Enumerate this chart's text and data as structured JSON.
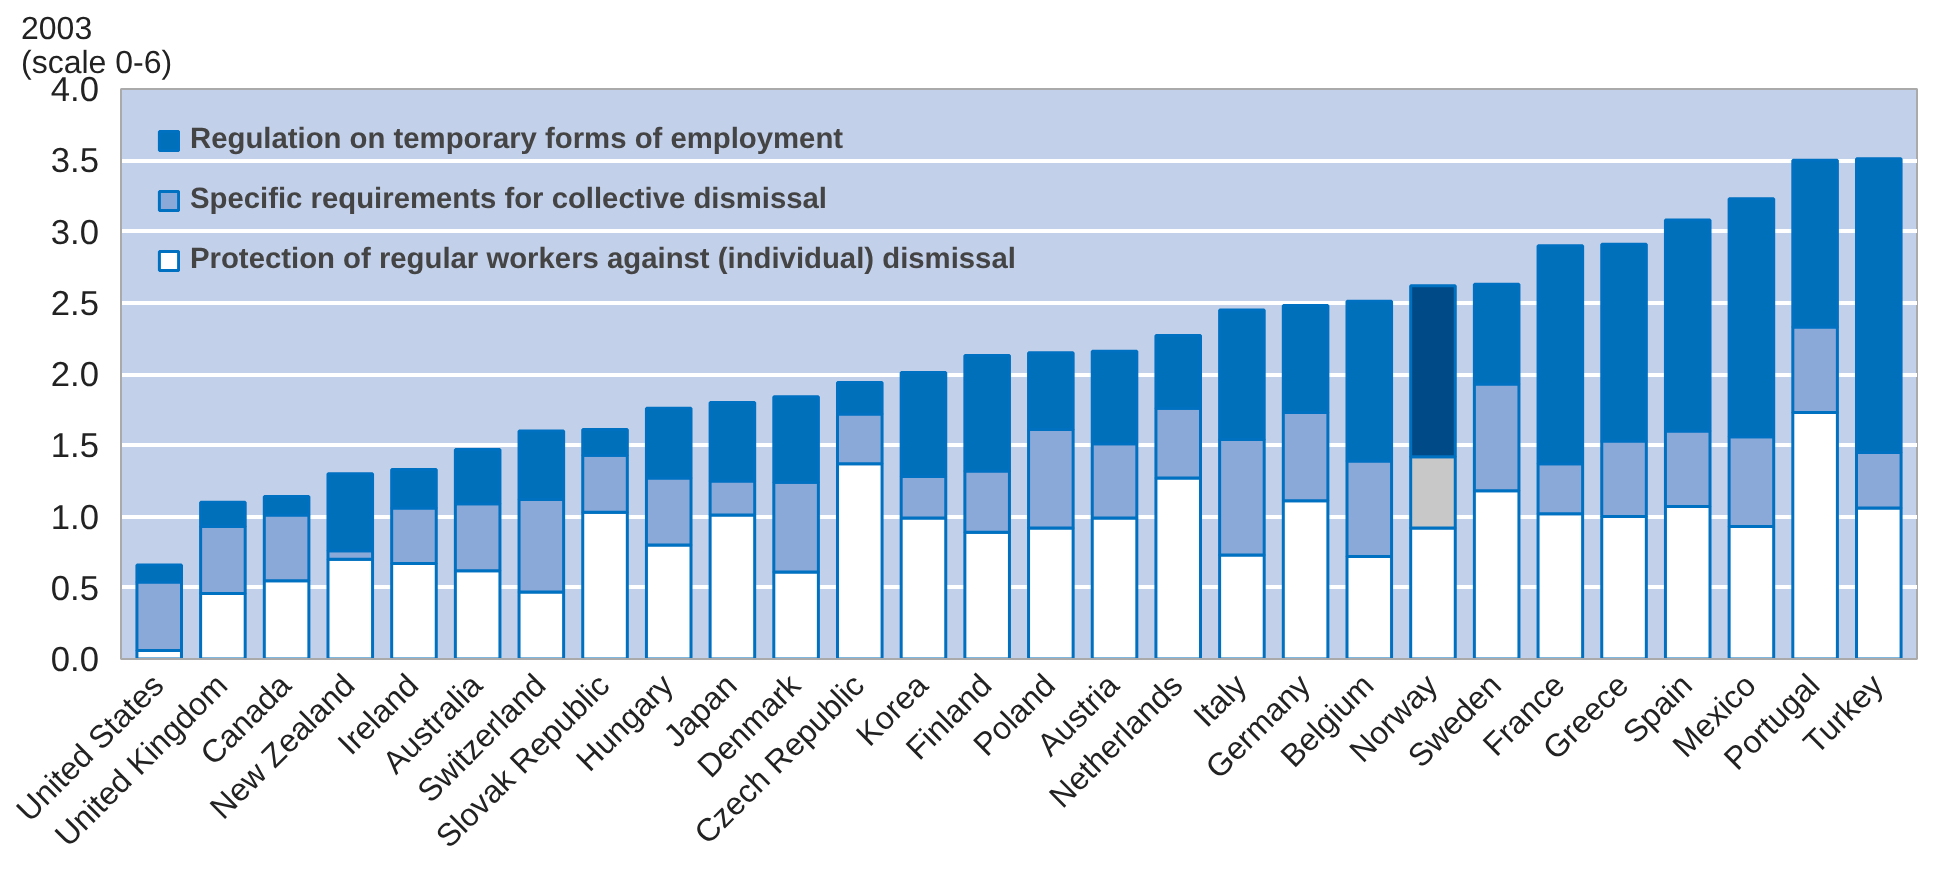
{
  "chart_data": {
    "type": "bar",
    "stacked": true,
    "ylabel": "2003\n(scale 0-6)",
    "categories": [
      "United States",
      "United Kingdom",
      "Canada",
      "New Zealand",
      "Ireland",
      "Australia",
      "Switzerland",
      "Slovak Republic",
      "Hungary",
      "Japan",
      "Denmark",
      "Czech Republic",
      "Korea",
      "Finland",
      "Poland",
      "Austria",
      "Netherlands",
      "Italy",
      "Germany",
      "Belgium",
      "Norway",
      "Sweden",
      "France",
      "Greece",
      "Spain",
      "Mexico",
      "Portugal",
      "Turkey"
    ],
    "series": [
      {
        "name": "Protection of regular workers against (individual) dismissal",
        "color": "#ffffff",
        "values": [
          0.06,
          0.46,
          0.55,
          0.7,
          0.67,
          0.62,
          0.47,
          1.03,
          0.8,
          1.01,
          0.61,
          1.37,
          0.99,
          0.89,
          0.92,
          0.99,
          1.27,
          0.73,
          1.11,
          0.72,
          0.92,
          1.18,
          1.02,
          1.0,
          1.07,
          0.93,
          1.73,
          1.06
        ]
      },
      {
        "name": "Specific requirements for collective dismissal",
        "color": "#8aa8d8",
        "colors": [
          null,
          null,
          null,
          null,
          null,
          null,
          null,
          null,
          null,
          null,
          null,
          null,
          null,
          null,
          null,
          null,
          null,
          null,
          null,
          null,
          "#c8c8c8",
          null,
          null,
          null,
          null,
          null,
          null,
          null
        ],
        "values": [
          0.48,
          0.47,
          0.46,
          0.06,
          0.39,
          0.47,
          0.65,
          0.4,
          0.47,
          0.24,
          0.63,
          0.35,
          0.29,
          0.43,
          0.69,
          0.52,
          0.49,
          0.81,
          0.62,
          0.67,
          0.5,
          0.75,
          0.35,
          0.53,
          0.53,
          0.63,
          0.6,
          0.39
        ]
      },
      {
        "name": "Regulation on temporary forms of employment",
        "color": "#0070ba",
        "colors": [
          null,
          null,
          null,
          null,
          null,
          null,
          null,
          null,
          null,
          null,
          null,
          null,
          null,
          null,
          null,
          null,
          null,
          null,
          null,
          null,
          "#004b87",
          null,
          null,
          null,
          null,
          null,
          null,
          null
        ],
        "values": [
          0.12,
          0.17,
          0.13,
          0.54,
          0.27,
          0.38,
          0.48,
          0.18,
          0.49,
          0.55,
          0.6,
          0.22,
          0.73,
          0.81,
          0.54,
          0.65,
          0.51,
          0.91,
          0.75,
          1.12,
          1.2,
          0.7,
          1.53,
          1.38,
          1.48,
          1.67,
          1.17,
          2.06
        ]
      }
    ],
    "ylim": [
      0,
      4.0
    ],
    "yticks": [
      {
        "value": 0,
        "label": "0.0"
      },
      {
        "value": 0.5,
        "label": "0.5"
      },
      {
        "value": 1,
        "label": "1.0"
      },
      {
        "value": 1.5,
        "label": "1.5"
      },
      {
        "value": 2,
        "label": "2.0"
      },
      {
        "value": 2.5,
        "label": "2.5"
      },
      {
        "value": 3,
        "label": "3.0"
      },
      {
        "value": 3.5,
        "label": "3.5"
      },
      {
        "value": 4,
        "label": "4.0"
      }
    ],
    "grid": "y",
    "legend": "top left"
  }
}
